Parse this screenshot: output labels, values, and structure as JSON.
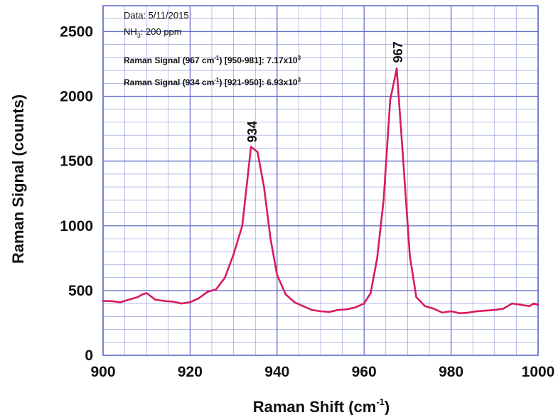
{
  "chart_data": {
    "type": "line",
    "xlabel": "Raman Shift (cm",
    "xlabel_sup": "-1",
    "xlabel_end": ")",
    "ylabel": "Raman Signal (counts)",
    "xlim": [
      900,
      1000
    ],
    "ylim": [
      0,
      2700
    ],
    "grid": true,
    "x_ticks": [
      900,
      920,
      940,
      960,
      980,
      1000
    ],
    "y_ticks": [
      0,
      500,
      1000,
      1500,
      2000,
      2500
    ],
    "line_color": "#d81b60",
    "grid_color": "#5b67c9",
    "annotation": {
      "date": "Data: 5/11/2015",
      "gas_prefix": "NH",
      "gas_sub": "3",
      "gas_rest": ": 200 ppm",
      "signal1_a": "Raman Signal (967 cm",
      "signal1_sup": "-1",
      "signal1_b": ") [950-981]: 7.17x10",
      "signal1_exp": "3",
      "signal2_a": "Raman Signal (934 cm",
      "signal2_sup": "-1",
      "signal2_b": ") [921-950]: 6.93x10",
      "signal2_exp": "3"
    },
    "peaks": [
      {
        "label": "934",
        "x": 934,
        "y": 1600
      },
      {
        "label": "967",
        "x": 967.5,
        "y": 2215
      }
    ],
    "series": [
      {
        "x": [
          900,
          902,
          904,
          906,
          908,
          909,
          910,
          912,
          914,
          916,
          918,
          920,
          922,
          924,
          926,
          928,
          930,
          932,
          934,
          935.5,
          937,
          938.5,
          940,
          942,
          944,
          946,
          948,
          950,
          952,
          954,
          956,
          958,
          960,
          961.5,
          963,
          964.5,
          966,
          967.5,
          969,
          970.5,
          972,
          974,
          976,
          978,
          980,
          982,
          984,
          986,
          988,
          990,
          992,
          994,
          996,
          998,
          999,
          1000
        ],
        "y": [
          420,
          418,
          410,
          430,
          450,
          470,
          480,
          430,
          420,
          415,
          400,
          410,
          440,
          490,
          510,
          600,
          780,
          1000,
          1610,
          1570,
          1300,
          900,
          620,
          470,
          410,
          380,
          350,
          340,
          335,
          350,
          355,
          370,
          400,
          480,
          750,
          1200,
          1970,
          2215,
          1500,
          770,
          450,
          380,
          360,
          330,
          340,
          325,
          330,
          340,
          345,
          350,
          360,
          400,
          390,
          380,
          400,
          390
        ]
      }
    ]
  }
}
